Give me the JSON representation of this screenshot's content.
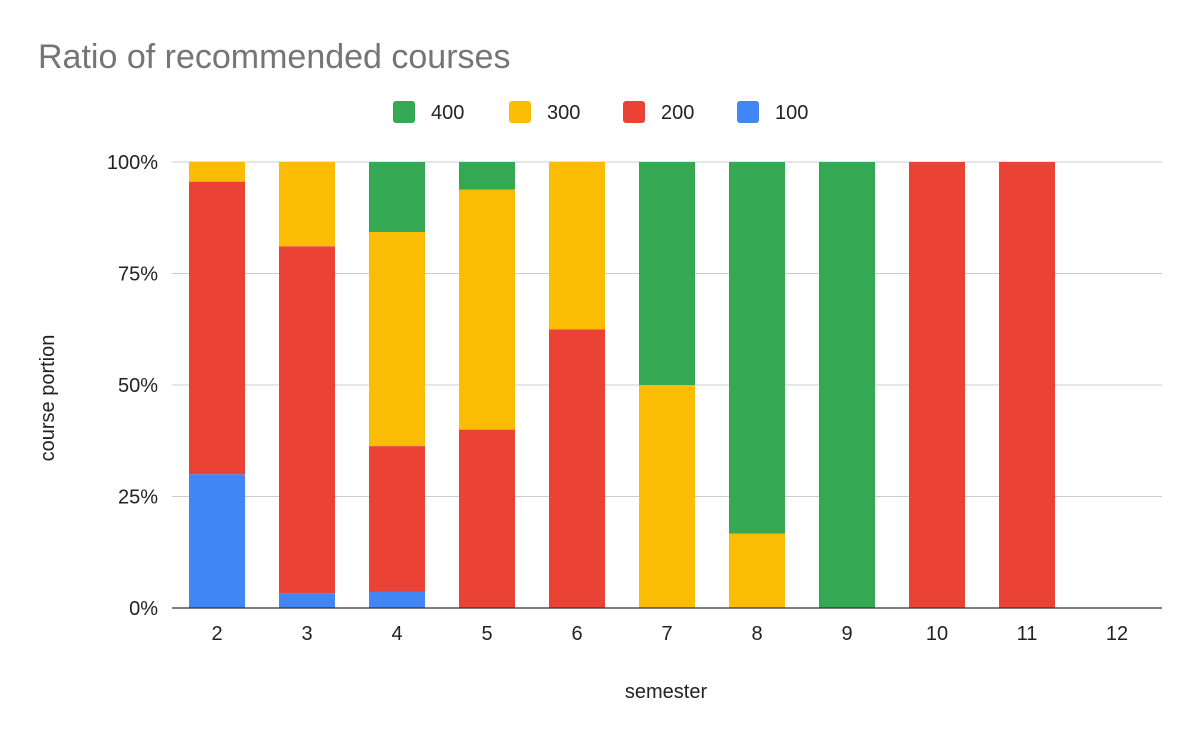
{
  "chart_data": {
    "type": "bar",
    "stacked": true,
    "title": "Ratio of recommended courses",
    "xlabel": "semester",
    "ylabel": "course portion",
    "categories": [
      "2",
      "3",
      "4",
      "5",
      "6",
      "7",
      "8",
      "9",
      "10",
      "11",
      "12"
    ],
    "ylim": [
      0,
      1
    ],
    "yticks": [
      {
        "value": 0,
        "label": "0%"
      },
      {
        "value": 0.25,
        "label": "25%"
      },
      {
        "value": 0.5,
        "label": "50%"
      },
      {
        "value": 0.75,
        "label": "75%"
      },
      {
        "value": 1,
        "label": "100%"
      }
    ],
    "grid": true,
    "legend_position": "top",
    "legend_order": [
      "400",
      "300",
      "200",
      "100"
    ],
    "series": [
      {
        "name": "100",
        "color": "#4285f4",
        "values": [
          0.3,
          0.033,
          0.037,
          0,
          0,
          0,
          0,
          0,
          0,
          0,
          0
        ]
      },
      {
        "name": "200",
        "color": "#ea4335",
        "values": [
          0.656,
          0.778,
          0.326,
          0.4,
          0.625,
          0,
          0,
          0,
          1,
          1,
          0
        ]
      },
      {
        "name": "300",
        "color": "#fbbc04",
        "values": [
          0.044,
          0.189,
          0.48,
          0.538,
          0.375,
          0.5,
          0.167,
          0,
          0,
          0,
          0
        ]
      },
      {
        "name": "400",
        "color": "#34a853",
        "values": [
          0,
          0,
          0.157,
          0.062,
          0,
          0.5,
          0.833,
          1,
          0,
          0,
          0
        ]
      }
    ]
  }
}
